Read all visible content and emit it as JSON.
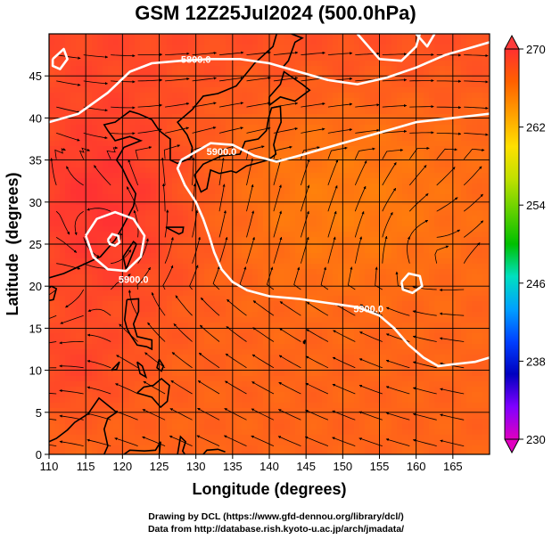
{
  "chart_data": {
    "type": "heatmap",
    "title": "GSM 12Z25Jul2024 (500.0hPa)",
    "xlabel": "Longitude (degrees)",
    "ylabel": "Latitude  (degrees)",
    "xlim": [
      110,
      170
    ],
    "ylim": [
      0,
      50
    ],
    "x_ticks": [
      110,
      115,
      120,
      125,
      130,
      135,
      140,
      145,
      150,
      155,
      160,
      165
    ],
    "y_ticks": [
      0,
      5,
      10,
      15,
      20,
      25,
      30,
      35,
      40,
      45
    ],
    "grid": true,
    "colorbar": {
      "min": 230,
      "max": 270,
      "ticks": [
        230,
        238,
        246,
        254,
        262,
        270
      ],
      "colors": [
        "#e000c0",
        "#8000ff",
        "#0000c0",
        "#0040ff",
        "#00a0ff",
        "#00e0c0",
        "#00c000",
        "#60d000",
        "#c0e000",
        "#ffe000",
        "#ffa000",
        "#ff6000",
        "#ff3030"
      ],
      "placement": "right"
    },
    "contours": [
      {
        "label": "5800.0",
        "points": [
          [
            110,
            39.5
          ],
          [
            114,
            40.5
          ],
          [
            118,
            43
          ],
          [
            121,
            45.5
          ],
          [
            124,
            46.5
          ],
          [
            128,
            46.8
          ],
          [
            132,
            47
          ],
          [
            136,
            47
          ],
          [
            140,
            46.5
          ],
          [
            144,
            45.5
          ],
          [
            148,
            44.5
          ],
          [
            152,
            44
          ],
          [
            156,
            44.8
          ],
          [
            160,
            46
          ],
          [
            164,
            47.5
          ],
          [
            168,
            48.5
          ],
          [
            170,
            49
          ]
        ]
      },
      {
        "label": "5900.0",
        "points": [
          [
            128,
            35
          ],
          [
            130,
            36
          ],
          [
            132,
            37
          ],
          [
            135,
            36.8
          ],
          [
            138,
            35.5
          ],
          [
            141,
            34.8
          ],
          [
            144,
            35.5
          ],
          [
            148,
            36.5
          ],
          [
            152,
            37.5
          ],
          [
            156,
            38.5
          ],
          [
            160,
            39.5
          ],
          [
            165,
            40
          ],
          [
            170,
            40.5
          ]
        ]
      },
      {
        "label": "5900.0",
        "points": [
          [
            128,
            35
          ],
          [
            127.5,
            34
          ],
          [
            128.5,
            32
          ],
          [
            130,
            30
          ],
          [
            131,
            28
          ],
          [
            131.8,
            26
          ],
          [
            132.5,
            24
          ],
          [
            133.5,
            22
          ],
          [
            135,
            20.5
          ],
          [
            137,
            19.5
          ],
          [
            140,
            18.8
          ],
          [
            144,
            18.5
          ],
          [
            148,
            18
          ],
          [
            152,
            17.5
          ],
          [
            155,
            16.5
          ],
          [
            157,
            15
          ],
          [
            159,
            13
          ],
          [
            161,
            11.5
          ],
          [
            163,
            10.5
          ],
          [
            166,
            10.8
          ],
          [
            168,
            11
          ],
          [
            170,
            11.5
          ]
        ]
      },
      {
        "label": "5900.0",
        "points": [
          [
            115,
            26
          ],
          [
            116.5,
            28
          ],
          [
            119,
            28.8
          ],
          [
            121.5,
            28
          ],
          [
            123,
            26
          ],
          [
            122.5,
            23.5
          ],
          [
            120.5,
            21.8
          ],
          [
            118,
            22
          ],
          [
            116,
            23.5
          ],
          [
            115,
            26
          ]
        ]
      },
      {
        "label": "",
        "points": [
          [
            118,
            25.5
          ],
          [
            118.6,
            26.2
          ],
          [
            119.4,
            26
          ],
          [
            119.6,
            25.2
          ],
          [
            119,
            24.8
          ],
          [
            118.3,
            25
          ],
          [
            118,
            25.5
          ]
        ]
      },
      {
        "label": "",
        "points": [
          [
            158,
            20.5
          ],
          [
            159,
            21.5
          ],
          [
            160.5,
            21.2
          ],
          [
            160.8,
            20
          ],
          [
            159.5,
            19.2
          ],
          [
            158.2,
            19.6
          ],
          [
            158,
            20.5
          ]
        ]
      },
      {
        "label": "",
        "points": [
          [
            110.5,
            47
          ],
          [
            112,
            48.2
          ],
          [
            112.5,
            47
          ],
          [
            111.5,
            45.8
          ],
          [
            110.5,
            46.2
          ],
          [
            110.5,
            47
          ]
        ]
      },
      {
        "label": "",
        "points": [
          [
            152,
            50
          ],
          [
            155,
            47
          ],
          [
            158,
            46.8
          ],
          [
            160,
            48.5
          ],
          [
            160.5,
            50
          ]
        ]
      },
      {
        "label": "",
        "points": [
          [
            160,
            50
          ],
          [
            161.5,
            48.5
          ],
          [
            162.5,
            50
          ]
        ]
      }
    ],
    "labels_on_map": [
      {
        "text": "5800.0",
        "x": 130,
        "y": 47
      },
      {
        "text": "5900.0",
        "x": 133.5,
        "y": 36
      },
      {
        "text": "5900.0",
        "x": 121.5,
        "y": 20.8
      },
      {
        "text": "5900.0",
        "x": 153.5,
        "y": 17.3
      }
    ]
  },
  "credits": {
    "line1": "Drawing by DCL (https://www.gfd-dennou.org/library/dcl/)",
    "line2": "Data from http://database.rish.kyoto-u.ac.jp/arch/jmadata/"
  }
}
